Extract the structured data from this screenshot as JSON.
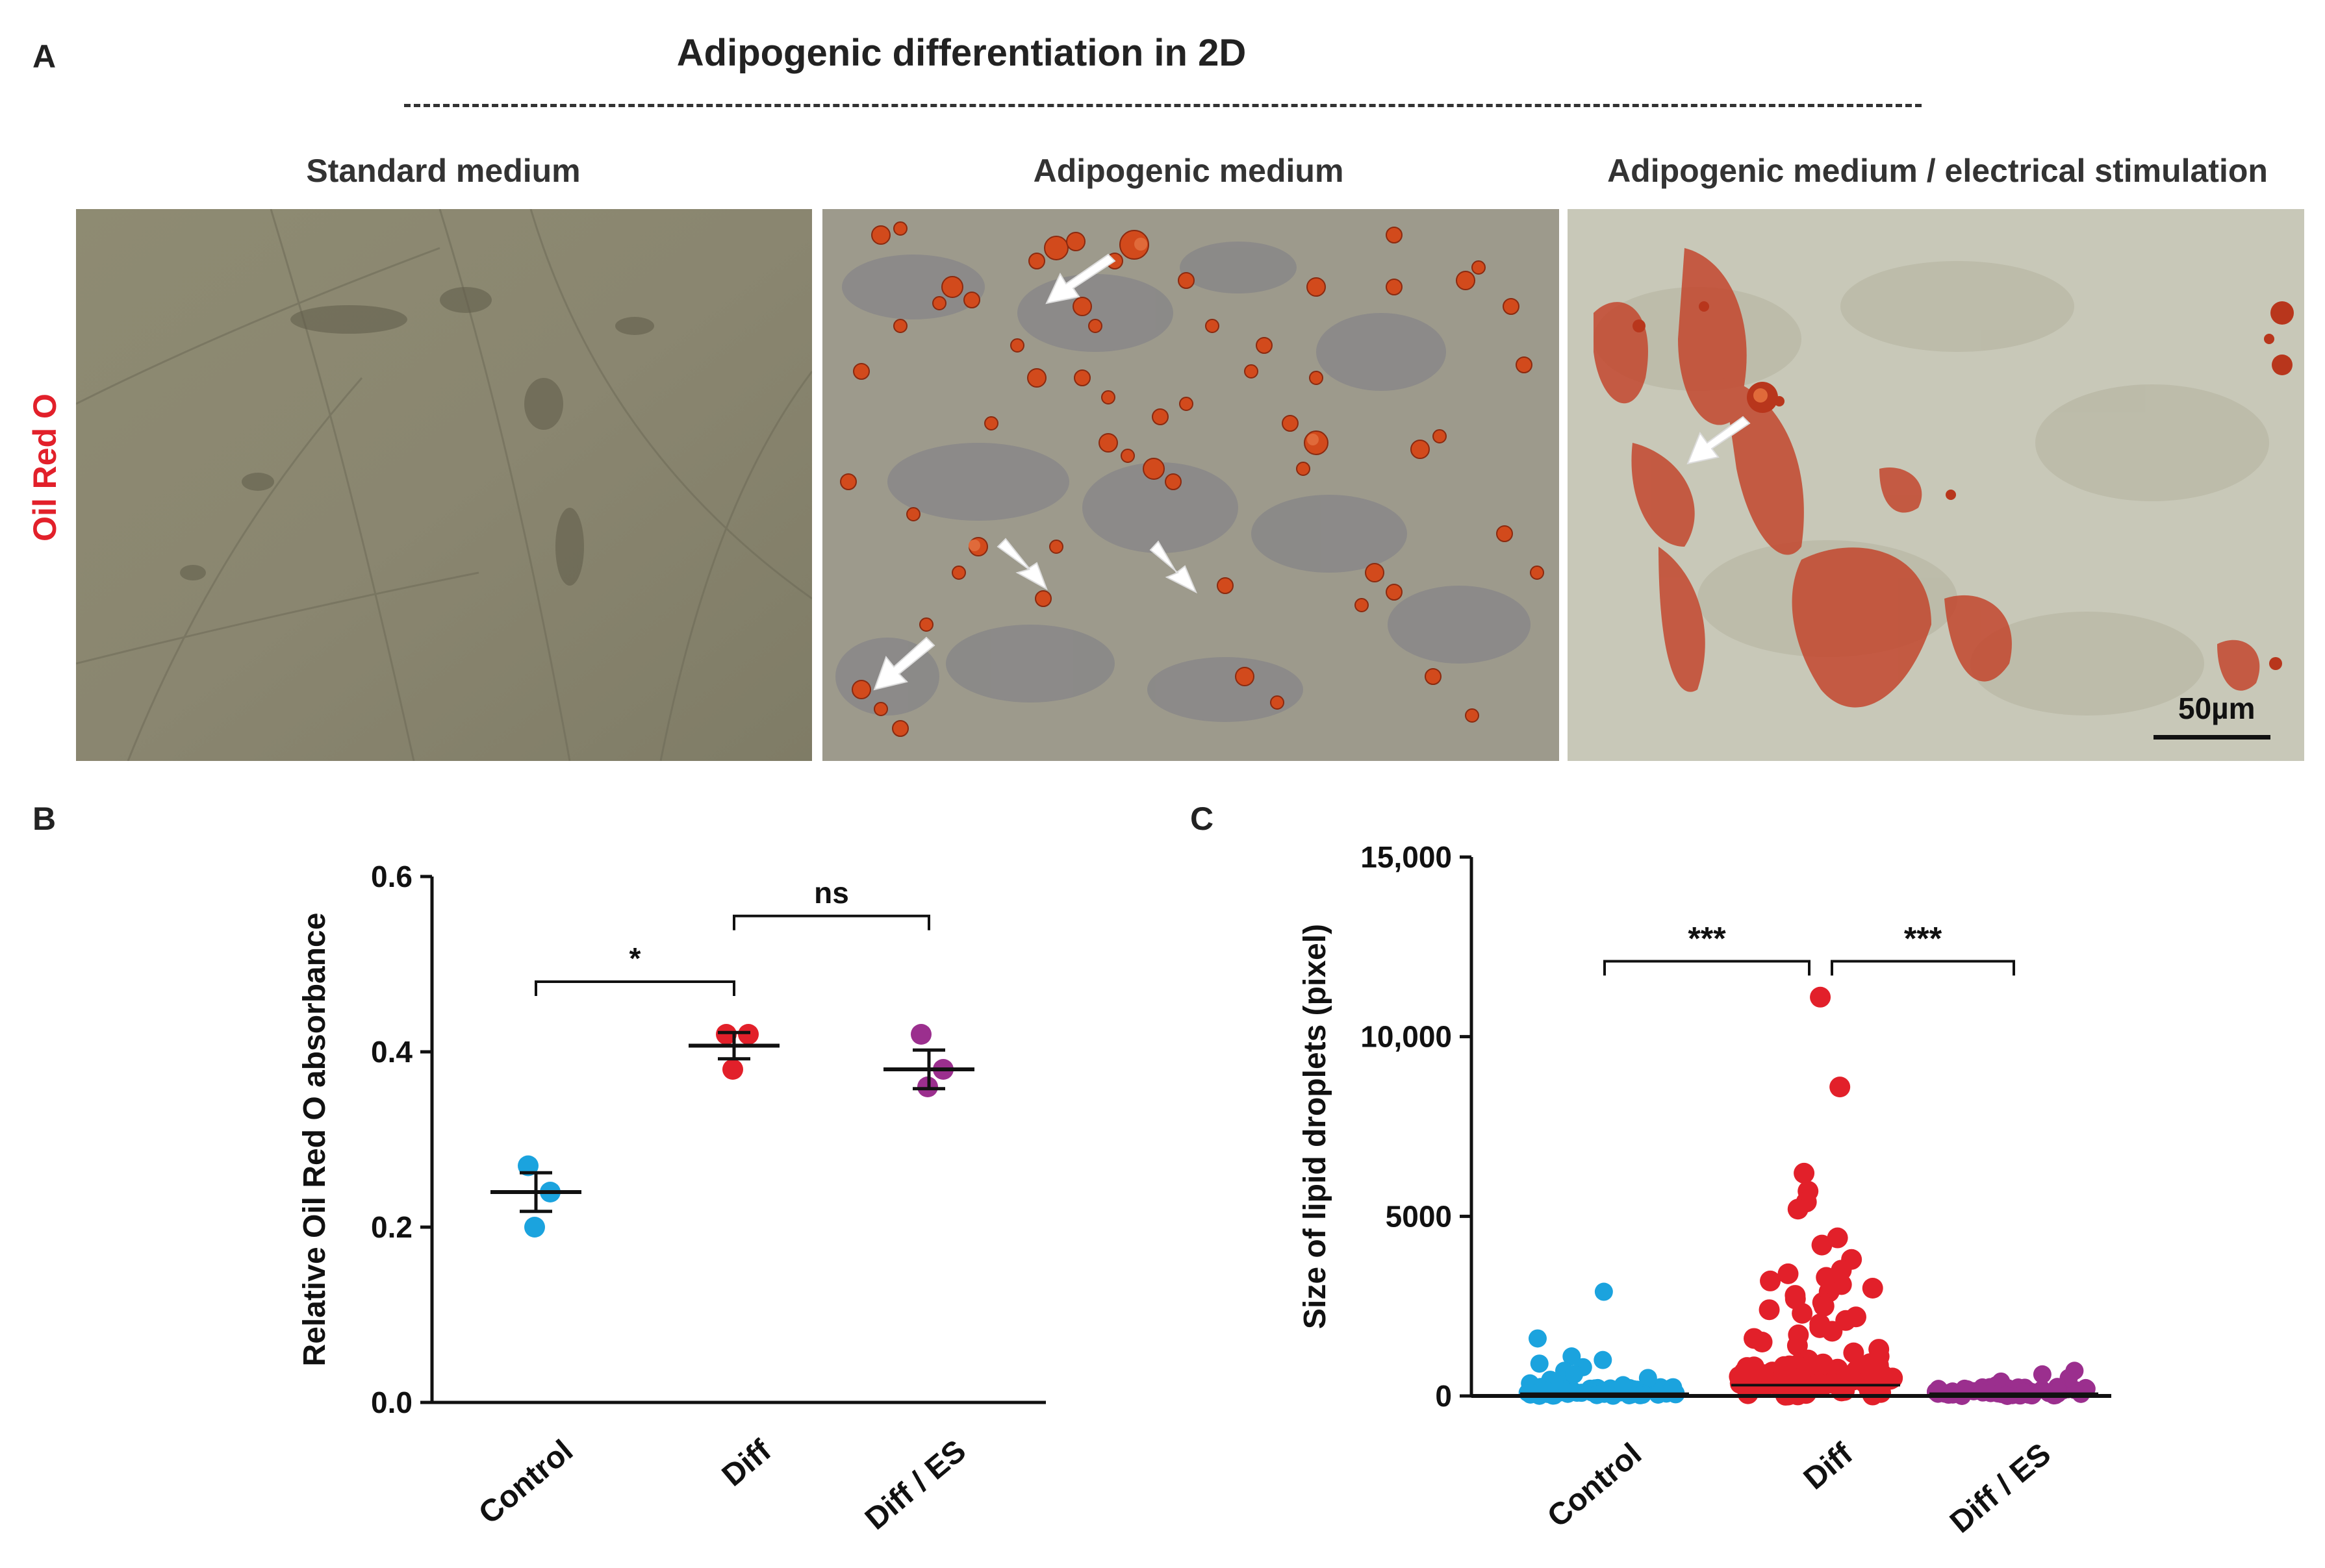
{
  "figure": {
    "panel_a_letter": "A",
    "panel_b_letter": "B",
    "panel_c_letter": "C",
    "title": "Adipogenic differentiation in 2D",
    "side_label": "Oil Red O",
    "columns": [
      "Standard medium",
      "Adipogenic medium",
      "Adipogenic medium / electrical stimulation"
    ],
    "scale_bar": "50µm",
    "colors": {
      "control": "#1ba3de",
      "diff": "#e2202a",
      "diff_es": "#9b2f8e",
      "stain_label": "#e2202a"
    }
  },
  "chart_data": [
    {
      "type": "scatter",
      "panel": "B",
      "ylabel": "Relative Oil Red O absorbance",
      "xlabel": "",
      "ylim": [
        0.0,
        0.6
      ],
      "yticks": [
        "0.0",
        "0.2",
        "0.4",
        "0.6"
      ],
      "yticks_values": [
        0.0,
        0.2,
        0.4,
        0.6
      ],
      "categories": [
        "Control",
        "Diff",
        "Diff / ES"
      ],
      "series": [
        {
          "group": "Control",
          "color": "#1ba3de",
          "points": [
            0.27,
            0.24,
            0.2
          ],
          "mean": 0.24,
          "sem": [
            0.218,
            0.262
          ]
        },
        {
          "group": "Diff",
          "color": "#e2202a",
          "points": [
            0.42,
            0.42,
            0.38
          ],
          "mean": 0.407,
          "sem": [
            0.392,
            0.422
          ]
        },
        {
          "group": "Diff / ES",
          "color": "#9b2f8e",
          "points": [
            0.42,
            0.38,
            0.36
          ],
          "mean": 0.38,
          "sem": [
            0.358,
            0.402
          ]
        }
      ],
      "annotations": [
        {
          "from": 0,
          "to": 1,
          "label": "*",
          "y": 0.48
        },
        {
          "from": 1,
          "to": 2,
          "label": "ns",
          "y": 0.555
        }
      ]
    },
    {
      "type": "scatter",
      "panel": "C",
      "ylabel": "Size of lipid droplets (pixel)",
      "xlabel": "",
      "ylim": [
        0,
        15000
      ],
      "yticks": [
        "0",
        "5000",
        "10,000",
        "15,000"
      ],
      "yticks_values": [
        0,
        5000,
        10000,
        15000
      ],
      "categories": [
        "Control",
        "Diff",
        "Diff / ES"
      ],
      "series": [
        {
          "group": "Control",
          "color": "#1ba3de",
          "outliers": [
            2900,
            1600,
            1100,
            1000,
            900,
            800,
            700,
            600,
            500,
            450,
            400,
            350,
            300,
            250,
            200,
            150,
            120,
            100,
            80,
            60,
            40,
            20
          ]
        },
        {
          "group": "Diff",
          "color": "#e2202a",
          "outliers": [
            11100,
            8600,
            6200,
            5700,
            5400,
            5200,
            4400,
            4200,
            3800,
            3500,
            3400,
            3300,
            3200,
            3100,
            3000,
            2900,
            2800,
            2700,
            2600,
            2500,
            2400,
            2300,
            2200,
            2100,
            2000,
            1900,
            1800,
            1700,
            1600,
            1500,
            1400,
            1300,
            1200,
            1100,
            1000,
            900,
            800,
            700,
            600,
            500,
            400,
            300,
            200,
            100
          ]
        },
        {
          "group": "Diff / ES",
          "color": "#9b2f8e",
          "outliers": [
            700,
            600,
            500,
            400,
            300,
            250,
            200,
            150,
            120,
            100,
            80,
            60,
            40,
            20
          ]
        }
      ],
      "annotations": [
        {
          "from": 0,
          "to": 1,
          "label": "***",
          "y": 12100
        },
        {
          "from": 1,
          "to": 2,
          "label": "***",
          "y": 12100
        }
      ]
    }
  ]
}
